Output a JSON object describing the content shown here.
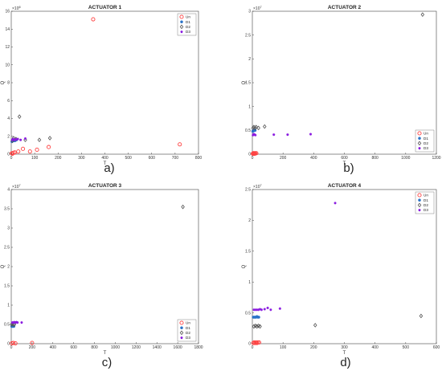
{
  "colors": {
    "Un": "#ff4040",
    "D1": "#2a72c8",
    "D2": "#555555",
    "D3": "#8a1be0"
  },
  "chart_data": [
    {
      "type": "scatter",
      "title": "ACTUATOR 1",
      "caption": "a)",
      "xlabel": "T",
      "ylabel": "Q",
      "y_exponent": "8",
      "xlim": [
        0,
        800
      ],
      "ylim": [
        0,
        16
      ],
      "xticks": [
        "0",
        "100",
        "200",
        "300",
        "400",
        "500",
        "600",
        "700",
        "800"
      ],
      "yticks": [
        "0",
        "2",
        "4",
        "6",
        "8",
        "10",
        "12",
        "14",
        "16"
      ],
      "legend_position": "top-right",
      "series": [
        {
          "name": "Un",
          "marker": "circle",
          "points": [
            [
              2,
              0.1
            ],
            [
              5,
              0.05
            ],
            [
              10,
              0.15
            ],
            [
              15,
              0.2
            ],
            [
              30,
              0.3
            ],
            [
              50,
              0.6
            ],
            [
              80,
              0.3
            ],
            [
              110,
              0.5
            ],
            [
              160,
              0.8
            ],
            [
              350,
              15.1
            ],
            [
              720,
              1.1
            ]
          ]
        },
        {
          "name": "D1",
          "marker": "dot",
          "points": [
            [
              3,
              1.4
            ],
            [
              6,
              1.5
            ],
            [
              9,
              1.5
            ],
            [
              12,
              1.6
            ],
            [
              15,
              1.5
            ],
            [
              18,
              1.55
            ],
            [
              22,
              1.6
            ]
          ]
        },
        {
          "name": "D2",
          "marker": "diamond",
          "points": [
            [
              5,
              1.5
            ],
            [
              10,
              1.8
            ],
            [
              20,
              1.7
            ],
            [
              35,
              4.2
            ],
            [
              60,
              1.6
            ],
            [
              120,
              1.6
            ],
            [
              165,
              1.8
            ]
          ]
        },
        {
          "name": "D3",
          "marker": "star",
          "points": [
            [
              4,
              1.6
            ],
            [
              8,
              1.7
            ],
            [
              14,
              1.6
            ],
            [
              20,
              1.65
            ],
            [
              28,
              1.7
            ],
            [
              40,
              1.6
            ],
            [
              60,
              1.75
            ]
          ]
        }
      ]
    },
    {
      "type": "scatter",
      "title": "ACTUATOR 2",
      "caption": "b)",
      "xlabel": "T",
      "ylabel": "Q",
      "y_exponent": "7",
      "xlim": [
        0,
        1200
      ],
      "ylim": [
        0,
        3
      ],
      "xticks": [
        "0",
        "200",
        "400",
        "600",
        "800",
        "1000",
        "1200"
      ],
      "yticks": [
        "0",
        "0.5",
        "1",
        "1.5",
        "2",
        "2.5",
        "3"
      ],
      "legend_position": "bottom-right",
      "series": [
        {
          "name": "Un",
          "marker": "circle",
          "points": [
            [
              3,
              0.01
            ],
            [
              6,
              0.02
            ],
            [
              9,
              0.01
            ],
            [
              12,
              0.02
            ],
            [
              16,
              0.01
            ],
            [
              20,
              0.02
            ],
            [
              26,
              0.02
            ]
          ]
        },
        {
          "name": "D1",
          "marker": "dot",
          "points": [
            [
              3,
              0.48
            ],
            [
              6,
              0.5
            ],
            [
              9,
              0.49
            ],
            [
              12,
              0.5
            ],
            [
              15,
              0.51
            ],
            [
              18,
              0.5
            ]
          ]
        },
        {
          "name": "D2",
          "marker": "diamond",
          "points": [
            [
              5,
              0.55
            ],
            [
              10,
              0.57
            ],
            [
              18,
              0.55
            ],
            [
              25,
              0.57
            ],
            [
              40,
              0.55
            ],
            [
              80,
              0.58
            ],
            [
              1110,
              2.93
            ]
          ]
        },
        {
          "name": "D3",
          "marker": "star",
          "points": [
            [
              4,
              0.4
            ],
            [
              9,
              0.42
            ],
            [
              15,
              0.41
            ],
            [
              20,
              0.4
            ],
            [
              140,
              0.41
            ],
            [
              230,
              0.41
            ],
            [
              380,
              0.42
            ]
          ]
        }
      ]
    },
    {
      "type": "scatter",
      "title": "ACTUATOR 3",
      "caption": "c)",
      "xlabel": "T",
      "ylabel": "Q",
      "y_exponent": "7",
      "xlim": [
        0,
        1800
      ],
      "ylim": [
        0,
        4
      ],
      "xticks": [
        "0",
        "200",
        "400",
        "600",
        "800",
        "1000",
        "1200",
        "1400",
        "1600",
        "1800"
      ],
      "yticks": [
        "0",
        "0.5",
        "1",
        "1.5",
        "2",
        "2.5",
        "3",
        "3.5",
        "4"
      ],
      "legend_position": "bottom-right",
      "series": [
        {
          "name": "Un",
          "marker": "circle",
          "points": [
            [
              5,
              0.01
            ],
            [
              20,
              0.02
            ],
            [
              40,
              0.01
            ],
            [
              200,
              0.02
            ]
          ]
        },
        {
          "name": "D1",
          "marker": "dot",
          "points": [
            [
              5,
              0.45
            ],
            [
              10,
              0.45
            ],
            [
              15,
              0.45
            ],
            [
              20,
              0.45
            ],
            [
              25,
              0.45
            ]
          ]
        },
        {
          "name": "D2",
          "marker": "diamond",
          "points": [
            [
              5,
              0.5
            ],
            [
              10,
              0.52
            ],
            [
              20,
              0.5
            ],
            [
              30,
              0.5
            ],
            [
              1650,
              3.55
            ]
          ]
        },
        {
          "name": "D3",
          "marker": "star",
          "points": [
            [
              10,
              0.55
            ],
            [
              20,
              0.55
            ],
            [
              30,
              0.56
            ],
            [
              40,
              0.55
            ],
            [
              50,
              0.56
            ],
            [
              60,
              0.55
            ],
            [
              100,
              0.55
            ]
          ]
        }
      ]
    },
    {
      "type": "scatter",
      "title": "ACTUATOR 4",
      "caption": "d)",
      "xlabel": "T",
      "ylabel": "Q",
      "y_exponent": "7",
      "xlim": [
        0,
        600
      ],
      "ylim": [
        0,
        2.5
      ],
      "xticks": [
        "0",
        "100",
        "200",
        "300",
        "400",
        "500",
        "600"
      ],
      "yticks": [
        "0",
        "0.5",
        "1",
        "1.5",
        "2",
        "2.5"
      ],
      "legend_position": "top-right",
      "series": [
        {
          "name": "Un",
          "marker": "circle",
          "points": [
            [
              3,
              0.01
            ],
            [
              6,
              0.02
            ],
            [
              9,
              0.01
            ],
            [
              12,
              0.02
            ],
            [
              15,
              0.01
            ],
            [
              18,
              0.02
            ],
            [
              22,
              0.02
            ]
          ]
        },
        {
          "name": "D1",
          "marker": "dot",
          "points": [
            [
              3,
              0.43
            ],
            [
              6,
              0.43
            ],
            [
              9,
              0.43
            ],
            [
              12,
              0.43
            ],
            [
              15,
              0.44
            ],
            [
              18,
              0.43
            ],
            [
              21,
              0.43
            ]
          ]
        },
        {
          "name": "D2",
          "marker": "diamond",
          "points": [
            [
              5,
              0.28
            ],
            [
              10,
              0.29
            ],
            [
              15,
              0.28
            ],
            [
              20,
              0.29
            ],
            [
              25,
              0.28
            ],
            [
              205,
              0.3
            ],
            [
              550,
              0.45
            ]
          ]
        },
        {
          "name": "D3",
          "marker": "star",
          "points": [
            [
              5,
              0.55
            ],
            [
              10,
              0.55
            ],
            [
              15,
              0.55
            ],
            [
              20,
              0.55
            ],
            [
              25,
              0.56
            ],
            [
              30,
              0.55
            ],
            [
              40,
              0.56
            ],
            [
              50,
              0.58
            ],
            [
              60,
              0.55
            ],
            [
              90,
              0.57
            ],
            [
              270,
              2.28
            ]
          ]
        }
      ]
    }
  ]
}
